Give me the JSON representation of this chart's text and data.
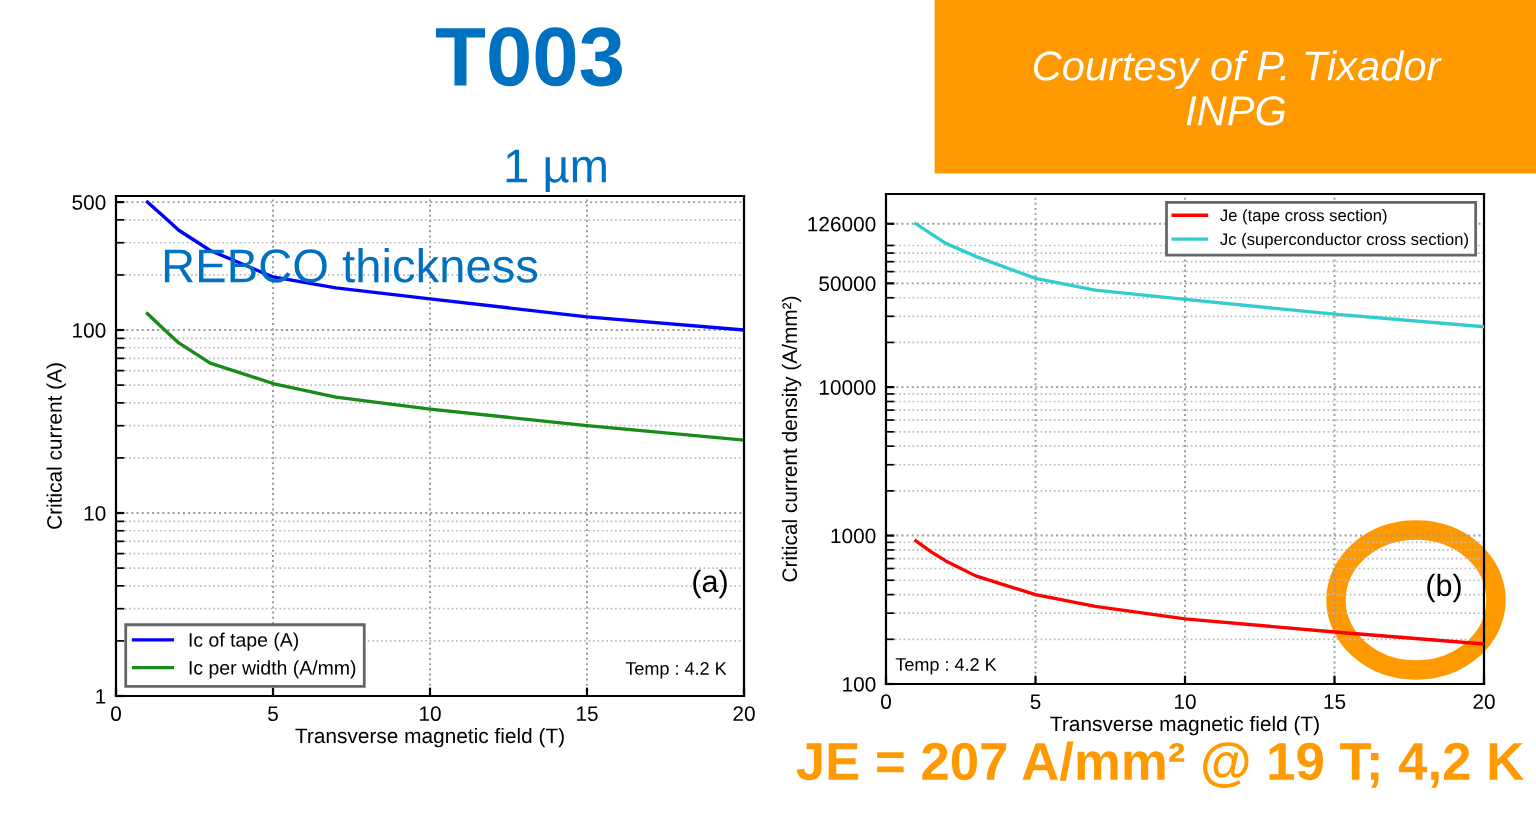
{
  "chart_data": [
    {
      "type": "line",
      "title": "T003",
      "xlabel": "Transverse magnetic field (T)",
      "ylabel": "Critical current (A)",
      "log": "y",
      "xlim": [
        0,
        20
      ],
      "xticks": [
        0,
        5,
        10,
        15,
        20
      ],
      "ylim": [
        1,
        540
      ],
      "yticks": [
        1,
        10,
        100,
        500
      ],
      "grid": true,
      "legend": "bottom left",
      "annotations": [
        "1 µm",
        "REBCO thickness",
        "(a)",
        "Temp : 4.2 K"
      ],
      "series": [
        {
          "name": "Ic of tape (A)",
          "color": "#0000ff",
          "x": [
            1,
            1.5,
            2,
            3,
            5,
            7,
            10,
            15,
            20
          ],
          "values": [
            500,
            420,
            351,
            272,
            195,
            170,
            148,
            118,
            100
          ]
        },
        {
          "name": "Ic per width (A/mm)",
          "color": "#1a8a1a",
          "x": [
            1,
            1.5,
            2,
            3,
            5,
            7,
            10,
            15,
            20
          ],
          "values": [
            123,
            102,
            85,
            66,
            51,
            43,
            37,
            30,
            25
          ]
        }
      ]
    },
    {
      "type": "line",
      "xlabel": "Transverse magnetic field (T)",
      "ylabel": "Critical current density (A/mm²)",
      "log": "y",
      "xlim": [
        0,
        20
      ],
      "xticks": [
        0,
        5,
        10,
        15,
        20
      ],
      "ylim": [
        100,
        200000
      ],
      "yticks": [
        100,
        1000,
        10000,
        50000,
        126000
      ],
      "grid": true,
      "legend": "top right",
      "annotations": [
        "(b)",
        "Temp : 4.2 K",
        "Courtesy of P. Tixador\nINPG",
        "JE = 207 A/mm² @ 19 T; 4,2 K"
      ],
      "series": [
        {
          "name": "Je (tape cross section)",
          "color": "#ff0000",
          "x": [
            1,
            1.5,
            2,
            3,
            5,
            7,
            10,
            15,
            20
          ],
          "values": [
            920,
            780,
            675,
            535,
            400,
            333,
            275,
            224,
            186
          ]
        },
        {
          "name": "Jc (superconductor cross section)",
          "color": "#33cccc",
          "x": [
            1,
            1.5,
            2,
            3,
            5,
            7,
            10,
            15,
            20
          ],
          "values": [
            126000,
            108000,
            93000,
            76000,
            54000,
            45000,
            39000,
            31000,
            25500
          ]
        }
      ]
    }
  ]
}
